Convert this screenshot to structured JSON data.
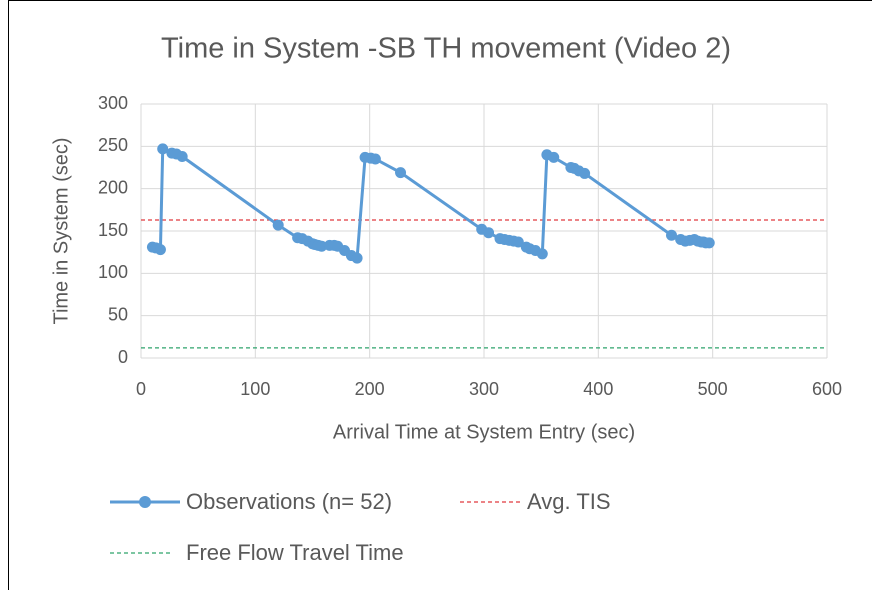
{
  "chart_data": {
    "type": "scatter-line",
    "title": "Time in System -SB TH movement (Video 2)",
    "x_label": "Arrival Time at System Entry (sec)",
    "y_label": "Time in System (sec)",
    "xlim": [
      0,
      600
    ],
    "xticks": [
      0,
      100,
      200,
      300,
      400,
      500,
      600
    ],
    "ylim": [
      0,
      300
    ],
    "yticks": [
      0,
      50,
      100,
      150,
      200,
      250,
      300
    ],
    "grid": true,
    "series": [
      {
        "name": "Observations (n= 52)",
        "color": "#5b9bd5",
        "x": [
          10,
          13,
          17,
          19,
          27,
          31,
          36,
          120,
          137,
          141,
          146,
          150,
          152,
          155,
          158,
          165,
          169,
          172,
          178,
          184,
          189,
          196,
          201,
          205,
          227,
          298,
          304,
          314,
          318,
          322,
          326,
          330,
          337,
          340,
          345,
          351,
          355,
          361,
          376,
          379,
          383,
          388,
          464,
          472,
          476,
          480,
          484,
          487,
          490,
          492,
          494,
          497
        ],
        "values": [
          131,
          130,
          128,
          247,
          242,
          241,
          238,
          157,
          142,
          141,
          138,
          135,
          134,
          133,
          132,
          133,
          133,
          132,
          127,
          121,
          118,
          237,
          236,
          235,
          219,
          152,
          148,
          141,
          140,
          139,
          138,
          137,
          131,
          129,
          127,
          123,
          240,
          237,
          225,
          224,
          221,
          218,
          145,
          140,
          138,
          139,
          140,
          138,
          137,
          137,
          136,
          136
        ]
      }
    ],
    "reference_lines": [
      {
        "name": "Avg. TIS",
        "color": "#e0393e",
        "value": 163
      },
      {
        "name": "Free Flow Travel Time",
        "color": "#2ea36b",
        "value": 12
      }
    ]
  }
}
